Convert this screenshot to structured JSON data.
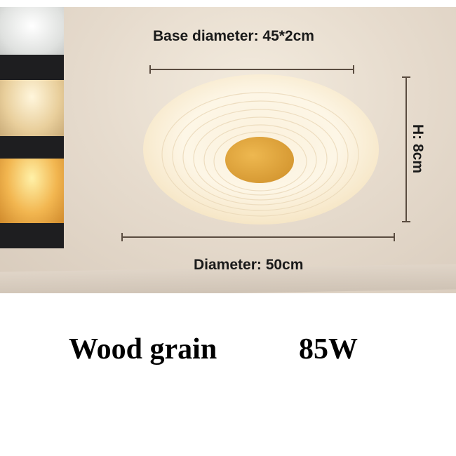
{
  "dimensions": {
    "base_diameter": "Base diameter: 45*2cm",
    "height": "H: 8cm",
    "diameter": "Diameter: 50cm"
  },
  "caption": {
    "finish": "Wood grain",
    "power": "85W"
  },
  "colors": {
    "cool_light": "#eef0ee",
    "neutral_light": "#f2dfb8",
    "warm_light": "#f5bd5a",
    "wood": "#e0a63c"
  }
}
